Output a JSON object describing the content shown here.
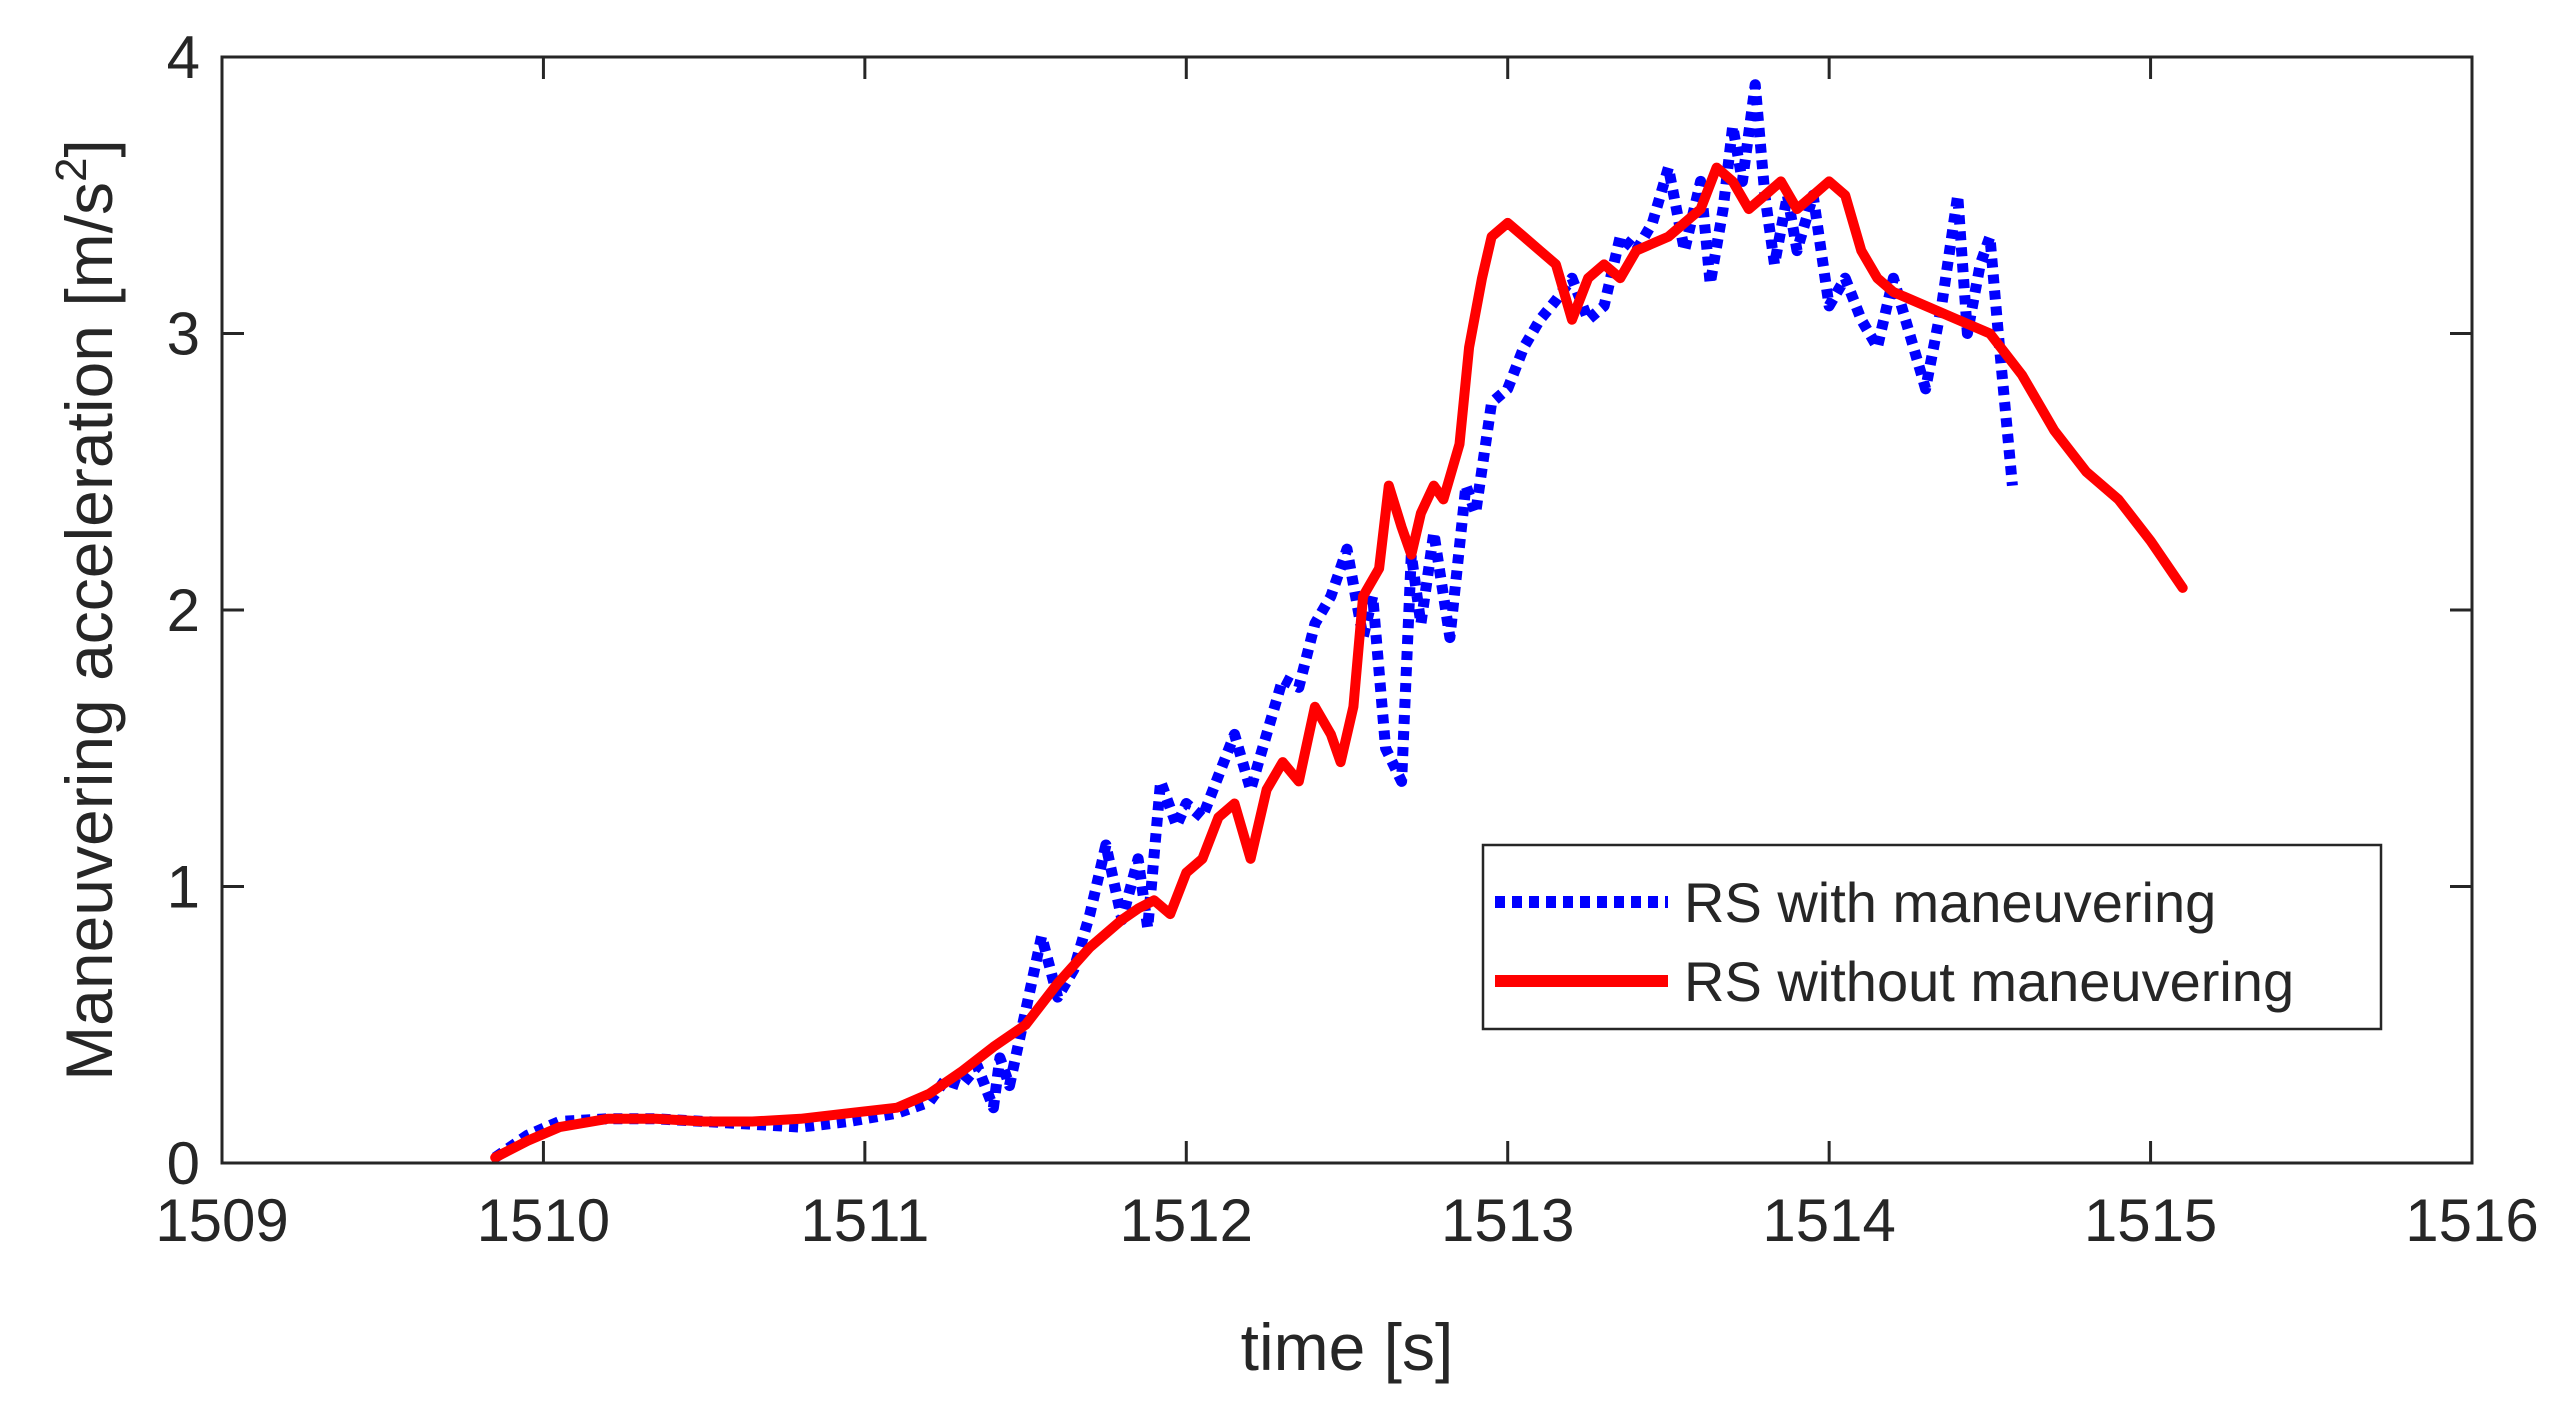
{
  "chart_data": {
    "type": "line",
    "title": "",
    "xlabel": "time [s]",
    "ylabel": "Maneuvering acceleration [m/s",
    "ylabel_sup": "2",
    "ylabel_tail": "]",
    "xlim": [
      1509,
      1516
    ],
    "ylim": [
      0,
      4
    ],
    "xticks": [
      1509,
      1510,
      1511,
      1512,
      1513,
      1514,
      1515,
      1516
    ],
    "yticks": [
      0,
      1,
      2,
      3,
      4
    ],
    "xtick_labels": [
      "1509",
      "1510",
      "1511",
      "1512",
      "1513",
      "1514",
      "1515",
      "1516"
    ],
    "ytick_labels": [
      "0",
      "1",
      "2",
      "3",
      "4"
    ],
    "grid": false,
    "legend_position": "lower-right",
    "series": [
      {
        "name": "RS with maneuvering",
        "color": "#0000ff",
        "style": "dotted",
        "x": [
          1509.85,
          1509.95,
          1510.05,
          1510.2,
          1510.35,
          1510.5,
          1510.65,
          1510.8,
          1510.95,
          1511.1,
          1511.2,
          1511.25,
          1511.3,
          1511.35,
          1511.4,
          1511.42,
          1511.45,
          1511.5,
          1511.55,
          1511.6,
          1511.65,
          1511.7,
          1511.75,
          1511.8,
          1511.85,
          1511.88,
          1511.92,
          1511.97,
          1512.0,
          1512.05,
          1512.1,
          1512.15,
          1512.2,
          1512.25,
          1512.3,
          1512.35,
          1512.4,
          1512.45,
          1512.5,
          1512.55,
          1512.58,
          1512.62,
          1512.67,
          1512.7,
          1512.73,
          1512.77,
          1512.82,
          1512.87,
          1512.9,
          1512.95,
          1513.0,
          1513.05,
          1513.1,
          1513.15,
          1513.2,
          1513.25,
          1513.3,
          1513.35,
          1513.4,
          1513.45,
          1513.5,
          1513.55,
          1513.6,
          1513.63,
          1513.67,
          1513.7,
          1513.73,
          1513.77,
          1513.8,
          1513.83,
          1513.87,
          1513.9,
          1513.95,
          1514.0,
          1514.05,
          1514.1,
          1514.15,
          1514.2,
          1514.25,
          1514.3,
          1514.35,
          1514.4,
          1514.43,
          1514.47,
          1514.5,
          1514.53,
          1514.57
        ],
        "values": [
          0.02,
          0.1,
          0.15,
          0.16,
          0.16,
          0.15,
          0.14,
          0.13,
          0.15,
          0.18,
          0.22,
          0.3,
          0.28,
          0.35,
          0.2,
          0.38,
          0.28,
          0.55,
          0.82,
          0.6,
          0.7,
          0.9,
          1.15,
          0.88,
          1.1,
          0.85,
          1.38,
          1.22,
          1.3,
          1.25,
          1.4,
          1.55,
          1.35,
          1.55,
          1.75,
          1.72,
          1.95,
          2.05,
          2.22,
          1.9,
          2.05,
          1.5,
          1.38,
          2.2,
          1.95,
          2.28,
          1.9,
          2.45,
          2.35,
          2.75,
          2.8,
          2.95,
          3.05,
          3.12,
          3.2,
          3.05,
          3.1,
          3.35,
          3.3,
          3.4,
          3.6,
          3.3,
          3.55,
          3.18,
          3.45,
          3.75,
          3.55,
          3.9,
          3.5,
          3.25,
          3.5,
          3.3,
          3.5,
          3.1,
          3.2,
          3.05,
          2.95,
          3.2,
          3.0,
          2.8,
          3.1,
          3.5,
          3.0,
          3.25,
          3.35,
          2.95,
          2.45
        ]
      },
      {
        "name": "RS without maneuvering",
        "color": "#ff0000",
        "style": "solid",
        "x": [
          1509.85,
          1509.95,
          1510.05,
          1510.2,
          1510.35,
          1510.5,
          1510.65,
          1510.8,
          1510.95,
          1511.1,
          1511.2,
          1511.3,
          1511.4,
          1511.5,
          1511.6,
          1511.7,
          1511.8,
          1511.85,
          1511.9,
          1511.95,
          1512.0,
          1512.05,
          1512.1,
          1512.15,
          1512.2,
          1512.25,
          1512.3,
          1512.35,
          1512.4,
          1512.45,
          1512.48,
          1512.52,
          1512.55,
          1512.6,
          1512.63,
          1512.67,
          1512.7,
          1512.73,
          1512.77,
          1512.8,
          1512.85,
          1512.88,
          1512.92,
          1512.95,
          1513.0,
          1513.05,
          1513.1,
          1513.15,
          1513.2,
          1513.25,
          1513.3,
          1513.35,
          1513.4,
          1513.5,
          1513.6,
          1513.65,
          1513.7,
          1513.75,
          1513.8,
          1513.85,
          1513.9,
          1513.95,
          1514.0,
          1514.05,
          1514.1,
          1514.15,
          1514.2,
          1514.3,
          1514.4,
          1514.5,
          1514.6,
          1514.7,
          1514.8,
          1514.9,
          1515.0,
          1515.1
        ],
        "values": [
          0.02,
          0.08,
          0.13,
          0.16,
          0.16,
          0.15,
          0.15,
          0.16,
          0.18,
          0.2,
          0.25,
          0.33,
          0.42,
          0.5,
          0.65,
          0.78,
          0.88,
          0.92,
          0.95,
          0.9,
          1.05,
          1.1,
          1.25,
          1.3,
          1.1,
          1.35,
          1.45,
          1.38,
          1.65,
          1.55,
          1.45,
          1.65,
          2.05,
          2.15,
          2.45,
          2.3,
          2.2,
          2.35,
          2.45,
          2.4,
          2.6,
          2.95,
          3.2,
          3.35,
          3.4,
          3.35,
          3.3,
          3.25,
          3.05,
          3.2,
          3.25,
          3.2,
          3.3,
          3.35,
          3.45,
          3.6,
          3.55,
          3.45,
          3.5,
          3.55,
          3.45,
          3.5,
          3.55,
          3.5,
          3.3,
          3.2,
          3.15,
          3.1,
          3.05,
          3.0,
          2.85,
          2.65,
          2.5,
          2.4,
          2.25,
          2.08
        ]
      }
    ]
  }
}
